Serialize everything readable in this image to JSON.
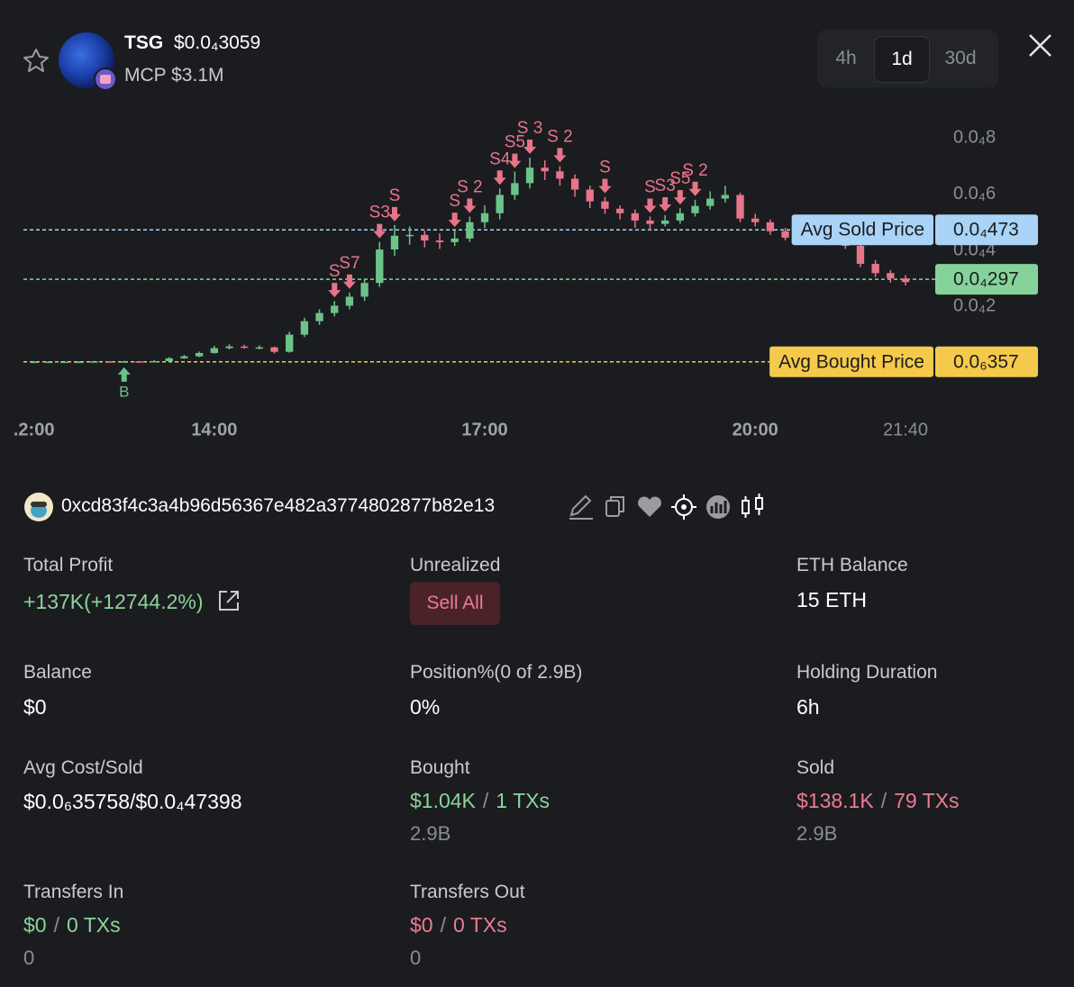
{
  "header": {
    "symbol": "TSG",
    "price": "$0.0₄3059",
    "mcap": "MCP $3.1M",
    "timeframes": [
      "4h",
      "1d",
      "30d"
    ],
    "active_timeframe_index": 1
  },
  "chart_data": {
    "type": "candlestick",
    "grid": false,
    "up_color": "#6cc38a",
    "down_color": "#e8748a",
    "xlim": [
      "11:53",
      "21:43"
    ],
    "xticks": [
      {
        "value": "12:00",
        "label": ".2:00"
      },
      "14:00",
      "17:00",
      "20:00",
      "21:40"
    ],
    "ylim": [
      -1.35e-05,
      8.74e-05
    ],
    "yticks": [
      {
        "value": 2e-05,
        "label": "0.0₄2"
      },
      {
        "value": 4e-05,
        "label": "0.0₄4"
      },
      {
        "value": 6e-05,
        "label": "0.0₄6"
      },
      {
        "value": 8e-05,
        "label": "0.0₄8"
      }
    ],
    "x": [
      "12:00",
      "12:10",
      "12:20",
      "12:30",
      "12:40",
      "12:50",
      "13:00",
      "13:10",
      "13:20",
      "13:30",
      "13:40",
      "13:50",
      "14:00",
      "14:10",
      "14:20",
      "14:30",
      "14:40",
      "14:50",
      "15:00",
      "15:10",
      "15:20",
      "15:30",
      "15:40",
      "15:50",
      "16:00",
      "16:10",
      "16:20",
      "16:30",
      "16:40",
      "16:50",
      "17:00",
      "17:10",
      "17:20",
      "17:30",
      "17:40",
      "17:50",
      "18:00",
      "18:10",
      "18:20",
      "18:30",
      "18:40",
      "18:50",
      "19:00",
      "19:10",
      "19:20",
      "19:30",
      "19:40",
      "19:50",
      "20:00",
      "20:10",
      "20:20",
      "20:30",
      "20:40",
      "20:50",
      "21:00",
      "21:10",
      "21:20",
      "21:30",
      "21:40"
    ],
    "candles": [
      [
        4e-07,
        6e-07,
        2e-07,
        4e-07
      ],
      [
        4e-07,
        6e-07,
        2e-07,
        4e-07
      ],
      [
        4e-07,
        5e-07,
        3e-07,
        4e-07
      ],
      [
        4e-07,
        6e-07,
        3e-07,
        4e-07
      ],
      [
        4e-07,
        7e-07,
        3e-07,
        5e-07
      ],
      [
        5e-07,
        6e-07,
        3e-07,
        4e-07
      ],
      [
        4e-07,
        7e-07,
        3e-07,
        5e-07
      ],
      [
        5e-07,
        6e-07,
        3e-07,
        4e-07
      ],
      [
        4e-07,
        9e-07,
        3e-07,
        6e-07
      ],
      [
        6e-07,
        2e-06,
        5e-07,
        1.6e-06
      ],
      [
        1.6e-06,
        2.8e-06,
        1.4e-06,
        2.3e-06
      ],
      [
        2.3e-06,
        4e-06,
        2e-06,
        3.5e-06
      ],
      [
        3.5e-06,
        6e-06,
        3.2e-06,
        5.2e-06
      ],
      [
        5.2e-06,
        6.6e-06,
        4.8e-06,
        5.8e-06
      ],
      [
        5.8e-06,
        6.4e-06,
        5e-06,
        5.5e-06
      ],
      [
        5.5e-06,
        6.2e-06,
        4.8e-06,
        5.5e-06
      ],
      [
        5.5e-06,
        5.8e-06,
        3.3e-06,
        3.9e-06
      ],
      [
        3.9e-06,
        1.1e-05,
        3.6e-06,
        1e-05
      ],
      [
        1e-05,
        1.6e-05,
        9.2e-06,
        1.48e-05
      ],
      [
        1.48e-05,
        1.9e-05,
        1.35e-05,
        1.77e-05
      ],
      [
        1.77e-05,
        2.2e-05,
        1.65e-05,
        2.03e-05
      ],
      [
        2.03e-05,
        2.5e-05,
        1.9e-05,
        2.35e-05
      ],
      [
        2.35e-05,
        3e-05,
        2.2e-05,
        2.84e-05
      ],
      [
        2.84e-05,
        4.3e-05,
        2.7e-05,
        4.03e-05
      ],
      [
        4.03e-05,
        4.9e-05,
        3.8e-05,
        4.52e-05
      ],
      [
        4.52e-05,
        4.85e-05,
        4.2e-05,
        4.55e-05
      ],
      [
        4.55e-05,
        4.7e-05,
        4.1e-05,
        4.35e-05
      ],
      [
        4.35e-05,
        4.6e-05,
        4.05e-05,
        4.29e-05
      ],
      [
        4.29e-05,
        4.7e-05,
        4.15e-05,
        4.42e-05
      ],
      [
        4.42e-05,
        5.2e-05,
        4.3e-05,
        5e-05
      ],
      [
        5e-05,
        5.6e-05,
        4.8e-05,
        5.32e-05
      ],
      [
        5.32e-05,
        6.2e-05,
        5.1e-05,
        5.97e-05
      ],
      [
        5.97e-05,
        6.8e-05,
        5.8e-05,
        6.39e-05
      ],
      [
        6.39e-05,
        7.3e-05,
        6.2e-05,
        6.94e-05
      ],
      [
        6.94e-05,
        7.2e-05,
        6.5e-05,
        6.81e-05
      ],
      [
        6.81e-05,
        7e-05,
        6.3e-05,
        6.55e-05
      ],
      [
        6.55e-05,
        6.7e-05,
        5.9e-05,
        6.16e-05
      ],
      [
        6.16e-05,
        6.3e-05,
        5.5e-05,
        5.74e-05
      ],
      [
        5.74e-05,
        5.9e-05,
        5.3e-05,
        5.48e-05
      ],
      [
        5.48e-05,
        5.6e-05,
        5.1e-05,
        5.32e-05
      ],
      [
        5.32e-05,
        5.45e-05,
        4.8e-05,
        5.06e-05
      ],
      [
        5.06e-05,
        5.2e-05,
        4.7e-05,
        4.94e-05
      ],
      [
        4.94e-05,
        5.25e-05,
        4.85e-05,
        5.06e-05
      ],
      [
        5.06e-05,
        5.5e-05,
        4.95e-05,
        5.32e-05
      ],
      [
        5.32e-05,
        5.8e-05,
        5.2e-05,
        5.58e-05
      ],
      [
        5.58e-05,
        6.1e-05,
        5.45e-05,
        5.84e-05
      ],
      [
        5.84e-05,
        6.3e-05,
        5.7e-05,
        5.97e-05
      ],
      [
        5.97e-05,
        6.05e-05,
        5e-05,
        5.13e-05
      ],
      [
        5.13e-05,
        5.3e-05,
        4.85e-05,
        5e-05
      ],
      [
        5e-05,
        5.1e-05,
        4.55e-05,
        4.68e-05
      ],
      [
        4.68e-05,
        4.8e-05,
        4.35e-05,
        4.45e-05
      ],
      [
        4.45e-05,
        4.6e-05,
        4.25e-05,
        4.39e-05
      ],
      [
        4.39e-05,
        4.5e-05,
        4.2e-05,
        4.35e-05
      ],
      [
        4.35e-05,
        4.5e-05,
        4.2e-05,
        4.35e-05
      ],
      [
        4.35e-05,
        4.45e-05,
        4.05e-05,
        4.16e-05
      ],
      [
        4.16e-05,
        4.25e-05,
        3.4e-05,
        3.52e-05
      ],
      [
        3.52e-05,
        3.65e-05,
        3.05e-05,
        3.19e-05
      ],
      [
        3.19e-05,
        3.3e-05,
        2.85e-05,
        3e-05
      ],
      [
        3e-05,
        3.12e-05,
        2.75e-05,
        2.87e-05
      ]
    ],
    "buy_markers": [
      {
        "x": "13:00",
        "label": "B"
      }
    ],
    "sell_markers": [
      {
        "x": "15:20",
        "label": "S"
      },
      {
        "x": "15:30",
        "label": "S7"
      },
      {
        "x": "15:50",
        "label": "S3"
      },
      {
        "x": "16:00",
        "label": "S"
      },
      {
        "x": "16:40",
        "label": "S"
      },
      {
        "x": "16:50",
        "label": "S 2"
      },
      {
        "x": "17:10",
        "label": "S4"
      },
      {
        "x": "17:20",
        "label": "S5"
      },
      {
        "x": "17:30",
        "label": "S 3"
      },
      {
        "x": "17:50",
        "label": "S 2"
      },
      {
        "x": "18:20",
        "label": "S"
      },
      {
        "x": "18:50",
        "label": "S"
      },
      {
        "x": "19:00",
        "label": "S3"
      },
      {
        "x": "19:10",
        "label": "S5"
      },
      {
        "x": "19:20",
        "label": "S 2"
      }
    ],
    "price_lines": [
      {
        "name": "Avg Sold Price",
        "value": 4.73e-05,
        "label": "0.0₄473",
        "color": "#a9d3f7"
      },
      {
        "value": 2.97e-05,
        "label": "0.0₄297",
        "color": "#86d39a"
      },
      {
        "name": "Avg Bought Price",
        "value": 3.57e-07,
        "label": "0.0₆357",
        "color": "#f5c94b"
      }
    ]
  },
  "wallet": {
    "address": "0xcd83f4c3a4b96d56367e482a3774802877b82e13"
  },
  "separator": "/",
  "stats": [
    {
      "label": "Total Profit",
      "value": "+137K(+12744.2%)"
    },
    {
      "label": "Unrealized",
      "button": "Sell All"
    },
    {
      "label": "ETH Balance",
      "value": "15 ETH"
    },
    {
      "label": "Balance",
      "value": "$0"
    },
    {
      "label": "Position%(0 of 2.9B)",
      "value": "0%"
    },
    {
      "label": "Holding Duration",
      "value": "6h"
    },
    {
      "label": "Avg Cost/Sold",
      "value": "$0.0₆35758/$0.0₄47398"
    },
    {
      "label": "Bought",
      "value": "$1.04K",
      "txs": "1 TXs",
      "sub": "2.9B"
    },
    {
      "label": "Sold",
      "value": "$138.1K",
      "txs": "79 TXs",
      "sub": "2.9B"
    },
    {
      "label": "Transfers In",
      "value": "$0",
      "txs": "0 TXs",
      "sub": "0"
    },
    {
      "label": "Transfers Out",
      "value": "$0",
      "txs": "0 TXs",
      "sub": "0"
    }
  ]
}
